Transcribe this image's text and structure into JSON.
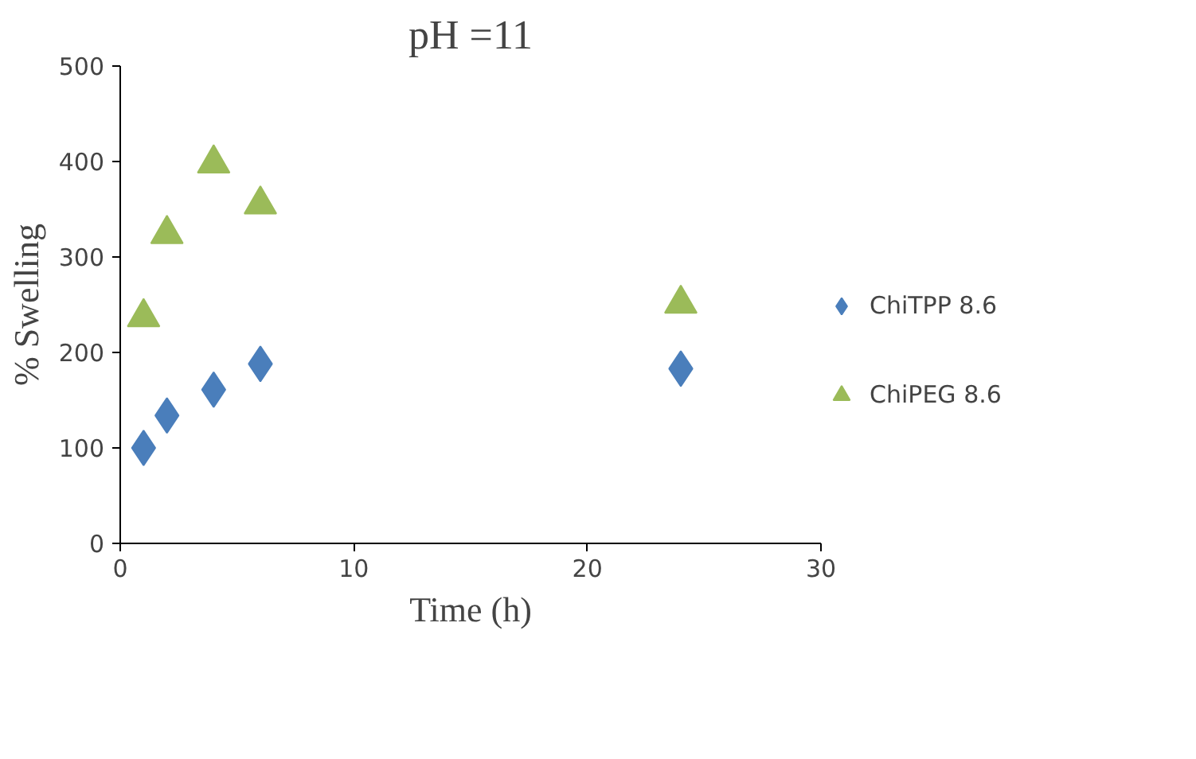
{
  "chart_data": {
    "type": "scatter",
    "title": "pH =11",
    "xlabel": "Time (h)",
    "ylabel": "% Swelling",
    "x": [
      1,
      2,
      4,
      6,
      24
    ],
    "series": [
      {
        "name": "ChiTPP 8.6",
        "color": "#4a7ebb",
        "marker": "diamond",
        "values": [
          100,
          134,
          161,
          188,
          183
        ]
      },
      {
        "name": "ChiPEG 8.6",
        "color": "#9bbb59",
        "marker": "triangle",
        "values": [
          237,
          324,
          398,
          355,
          251
        ]
      }
    ],
    "xlim": [
      0,
      30
    ],
    "xticks": [
      0,
      10,
      20,
      30
    ],
    "ylim": [
      0,
      500
    ],
    "yticks": [
      0,
      100,
      200,
      300,
      400,
      500
    ],
    "grid": false,
    "legend": "right"
  }
}
